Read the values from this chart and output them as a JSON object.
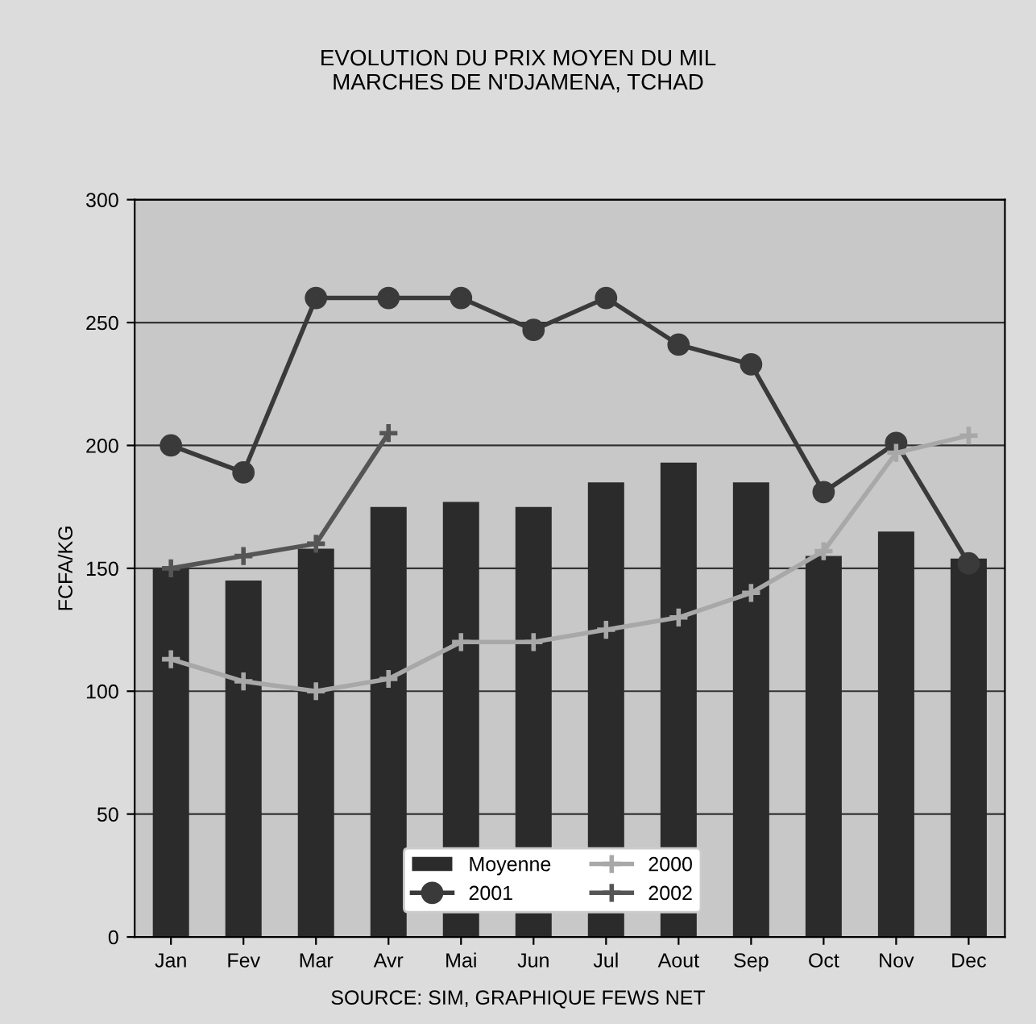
{
  "chart_data": {
    "type": "bar",
    "title": "EVOLUTION DU PRIX MOYEN DU MIL\nMARCHES DE N'DJAMENA, TCHAD",
    "ylabel": "FCFA/KG",
    "categories": [
      "Jan",
      "Fev",
      "Mar",
      "Avr",
      "Mai",
      "Jun",
      "Jul",
      "Aout",
      "Sep",
      "Oct",
      "Nov",
      "Dec"
    ],
    "series": [
      {
        "name": "Moyenne",
        "color": "#2b2b2b",
        "values": [
          150,
          145,
          158,
          175,
          177,
          175,
          185,
          193,
          185,
          155,
          165,
          154
        ]
      },
      {
        "name": "2000",
        "type": "line",
        "color": "#a8a8a8",
        "marker": "cross",
        "values": [
          113,
          104,
          100,
          105,
          120,
          120,
          125,
          130,
          140,
          157,
          197,
          204
        ]
      },
      {
        "name": "2001",
        "type": "line",
        "color": "#3a3a3a",
        "marker": "circle",
        "values": [
          200,
          189,
          260,
          260,
          260,
          247,
          260,
          241,
          233,
          181,
          201,
          152
        ]
      },
      {
        "name": "2002",
        "type": "line",
        "color": "#555555",
        "marker": "cross",
        "values": [
          150,
          155,
          160,
          205,
          null,
          null,
          null,
          null,
          null,
          null,
          null,
          null
        ]
      }
    ],
    "ylim": [
      0,
      300
    ],
    "yticks": [
      0,
      50,
      100,
      150,
      200,
      250,
      300
    ],
    "grid": "y",
    "legend": "bottom",
    "annotations": [
      "SOURCE: SIM, GRAPHIQUE FEWS NET"
    ]
  }
}
